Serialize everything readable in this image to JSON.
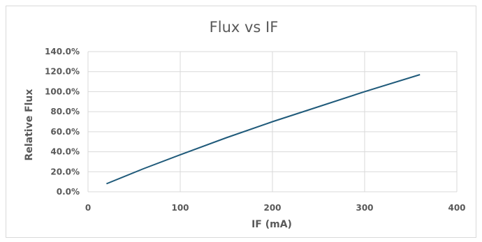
{
  "chart_data": {
    "type": "line",
    "title": "Flux vs IF",
    "xlabel": "IF (mA)",
    "ylabel": "Relative Flux",
    "xlim": [
      0,
      400
    ],
    "ylim": [
      0,
      140
    ],
    "x_ticks": [
      0,
      100,
      200,
      300,
      400
    ],
    "y_ticks": [
      0,
      20,
      40,
      60,
      80,
      100,
      120,
      140
    ],
    "y_tick_labels": [
      "0.0%",
      "20.0%",
      "40.0%",
      "60.0%",
      "80.0%",
      "100.0%",
      "120.0%",
      "140.0%"
    ],
    "grid": true,
    "legend": "none",
    "series": [
      {
        "color": "#1f5a7a",
        "x": [
          20,
          60,
          100,
          150,
          200,
          250,
          300,
          360
        ],
        "y": [
          8,
          23,
          37,
          54,
          70,
          85,
          100,
          117
        ]
      }
    ]
  }
}
